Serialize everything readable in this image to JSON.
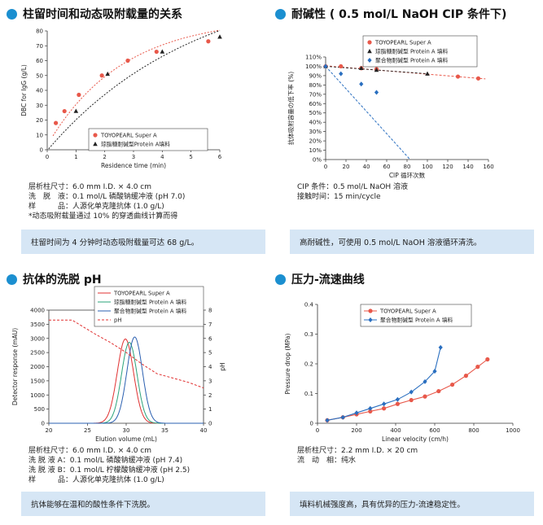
{
  "panels": [
    {
      "title": "柱留时间和动态吸附载量的关系",
      "notes": [
        "层析柱尺寸：6.0 mm I.D. × 4.0 cm",
        "洗　脱　液：0.1 mol/L 磷酸钠缓冲液 (pH 7.0)",
        "样　　　品：人源化单克隆抗体 (1.0 g/L)",
        "*动态吸附载量通过 10% 的穿透曲线计算而得"
      ],
      "summary": "柱留时间为 4 分钟时动态吸附载量可达 68 g/L。"
    },
    {
      "title": "耐碱性 ( 0.5 mol/L NaOH CIP 条件下)",
      "notes": [
        "CIP 条件：0.5 mol/L NaOH 溶液",
        "接触时间：15 min/cycle"
      ],
      "summary": "高耐碱性，可使用 0.5 mol/L NaOH 溶液循环清洗。"
    },
    {
      "title": "抗体的洗脱 pH",
      "notes": [
        "层析柱尺寸：6.0 mm I.D. × 4.0 cm",
        "洗 脱 液 A：0.1 mol/L 磷酸钠缓冲液 (pH 7.4)",
        "洗 脱 液 B：0.1 mol/L 柠檬酸钠缓冲液 (pH 2.5)",
        "样　　　品：人源化单克隆抗体 (1.0 g/L)"
      ],
      "summary": "抗体能够在温和的酸性条件下洗脱。"
    },
    {
      "title": "压力-流速曲线",
      "notes": [
        "层析柱尺寸：2.2 mm I.D. × 20 cm",
        "流　动　相：纯水"
      ],
      "summary": "填料机械强度高，具有优异的压力-流速稳定性。"
    }
  ],
  "chart_data": [
    {
      "type": "scatter",
      "xlabel": "Residence time (min)",
      "ylabel": "DBC for IgG (g/L)",
      "xlim": [
        0,
        6
      ],
      "ylim": [
        0,
        80
      ],
      "xticks": [
        0,
        1,
        2,
        3,
        4,
        5,
        6
      ],
      "yticks": [
        0,
        10,
        20,
        30,
        40,
        50,
        60,
        70,
        80
      ],
      "legend_position": "bottom-right",
      "series": [
        {
          "name": "TOYOPEARL Super A",
          "marker": "circle",
          "color": "#e8584a",
          "x": [
            0.3,
            0.6,
            1.1,
            1.9,
            2.8,
            3.8,
            5.6
          ],
          "y": [
            18,
            26,
            37,
            50,
            60,
            66,
            73
          ]
        },
        {
          "name": "琼脂糖耐碱型Protein A填料",
          "marker": "triangle",
          "color": "#222222",
          "x": [
            1.0,
            2.1,
            4.0,
            6.0
          ],
          "y": [
            26,
            51,
            66,
            76
          ]
        }
      ]
    },
    {
      "type": "scatter",
      "xlabel": "CIP 循环次数",
      "ylabel": "抗体吸附容量の低下率 (%)",
      "xlim": [
        0,
        160
      ],
      "ylim": [
        0,
        110
      ],
      "xticks": [
        0,
        20,
        40,
        60,
        80,
        100,
        120,
        140,
        160
      ],
      "yticks": [
        0,
        10,
        20,
        30,
        40,
        50,
        60,
        70,
        80,
        90,
        100,
        110
      ],
      "ytick_labels": [
        "0%",
        "10%",
        "20%",
        "30%",
        "40%",
        "50%",
        "60%",
        "70%",
        "80%",
        "90%",
        "100%",
        "110%"
      ],
      "legend_position": "top-right",
      "series": [
        {
          "name": "TOYOPEARL Super A",
          "marker": "circle",
          "color": "#e8584a",
          "x": [
            0,
            15,
            35,
            50,
            130,
            150
          ],
          "y": [
            100,
            100,
            98,
            97,
            89,
            87
          ]
        },
        {
          "name": "琼脂糖耐碱型 Protein A 填料",
          "marker": "triangle",
          "color": "#222222",
          "x": [
            0,
            35,
            50,
            100
          ],
          "y": [
            100,
            98,
            96,
            92
          ]
        },
        {
          "name": "聚合物耐碱型 Protein A 填料",
          "marker": "diamond",
          "color": "#2a6fc0",
          "x": [
            0,
            15,
            35,
            50
          ],
          "y": [
            100,
            92,
            81,
            72
          ]
        }
      ]
    },
    {
      "type": "line",
      "xlabel": "Elution volume (mL)",
      "ylabel": "Detector response (mAU)",
      "ylabel_right": "pH",
      "xlim": [
        20,
        40
      ],
      "ylim": [
        0,
        4000
      ],
      "ylim_right": [
        0,
        8
      ],
      "xticks": [
        20,
        25,
        30,
        35,
        40
      ],
      "yticks": [
        0,
        500,
        1000,
        1500,
        2000,
        2500,
        3000,
        3500,
        4000
      ],
      "yticks_right": [
        0,
        1,
        2,
        3,
        4,
        5,
        6,
        7,
        8
      ],
      "legend_position": "top-right",
      "series": [
        {
          "name": "TOYOPEARL Super A",
          "color": "#e03030",
          "peak_center": 29.9,
          "peak_height": 2980,
          "peak_sigma": 1.05
        },
        {
          "name": "琼脂糖耐碱型 Protein A 填料",
          "color": "#2aa37a",
          "peak_center": 30.4,
          "peak_height": 2860,
          "peak_sigma": 1.0
        },
        {
          "name": "聚合物耐碱型 Protein A 填料",
          "color": "#2a5fb0",
          "peak_center": 31.1,
          "peak_height": 3050,
          "peak_sigma": 1.0
        },
        {
          "name": "pH",
          "color": "#e03030",
          "dashed": true,
          "axis": "right",
          "x": [
            20,
            23,
            26,
            28,
            30,
            32,
            34,
            36,
            38,
            40
          ],
          "y": [
            7.3,
            7.3,
            6.3,
            5.7,
            5.0,
            4.2,
            3.5,
            3.2,
            2.9,
            2.5
          ]
        }
      ]
    },
    {
      "type": "line",
      "xlabel": "Linear velocity (cm/h)",
      "ylabel": "Pressure drop (MPa)",
      "xlim": [
        0,
        1000
      ],
      "ylim": [
        0,
        0.4
      ],
      "xticks": [
        0,
        200,
        400,
        600,
        800,
        1000
      ],
      "yticks": [
        0,
        0.1,
        0.2,
        0.3,
        0.4
      ],
      "legend_position": "top-right",
      "series": [
        {
          "name": "TOYOPEARL Super A",
          "marker": "circle",
          "color": "#e8584a",
          "x": [
            50,
            130,
            200,
            270,
            340,
            410,
            480,
            550,
            620,
            690,
            760,
            820,
            870
          ],
          "y": [
            0.01,
            0.02,
            0.03,
            0.04,
            0.05,
            0.065,
            0.078,
            0.09,
            0.108,
            0.13,
            0.16,
            0.19,
            0.215
          ]
        },
        {
          "name": "聚合物耐碱型 Protein A 填料",
          "marker": "diamond",
          "color": "#2a6fc0",
          "x": [
            50,
            130,
            200,
            270,
            340,
            410,
            480,
            550,
            600,
            630
          ],
          "y": [
            0.01,
            0.02,
            0.035,
            0.05,
            0.065,
            0.08,
            0.105,
            0.14,
            0.175,
            0.255
          ]
        }
      ]
    }
  ]
}
